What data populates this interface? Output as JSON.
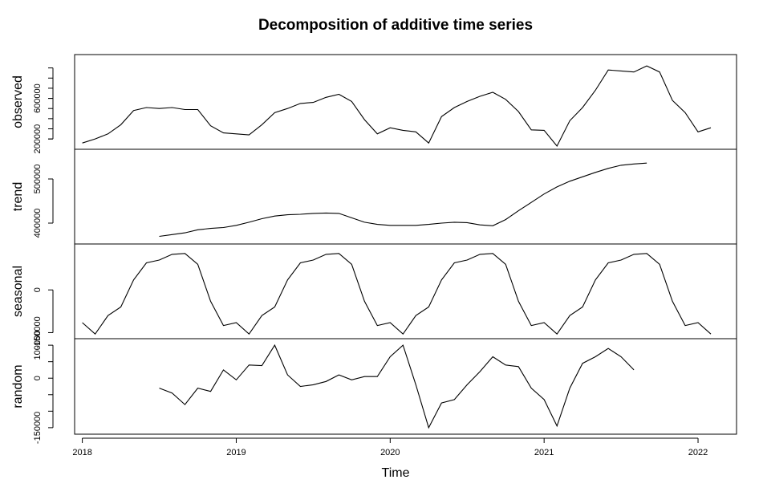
{
  "chart_data": {
    "type": "line",
    "title": "Decomposition of additive time series",
    "xlabel": "Time",
    "xlim": [
      2017.95,
      2022.25
    ],
    "x_ticks": [
      2018,
      2019,
      2020,
      2021,
      2022
    ],
    "x_tick_labels": [
      "2018",
      "2019",
      "2020",
      "2021",
      "2022"
    ],
    "start": 2018.0,
    "frequency": 12,
    "panels": [
      {
        "name": "observed",
        "ylabel": "observed",
        "ylim": [
          130000,
          1000000
        ],
        "y_ticks": [
          200000,
          600000
        ],
        "y_tick_labels": [
          "200000",
          "600000"
        ],
        "minor_ticks": [
          200000,
          300000,
          400000,
          500000,
          600000,
          700000,
          800000,
          900000
        ],
        "values": [
          160000,
          200000,
          250000,
          340000,
          480000,
          510000,
          500000,
          510000,
          490000,
          490000,
          330000,
          260000,
          250000,
          240000,
          340000,
          460000,
          500000,
          550000,
          560000,
          610000,
          640000,
          570000,
          390000,
          250000,
          310000,
          285000,
          270000,
          160000,
          420000,
          510000,
          570000,
          620000,
          660000,
          590000,
          470000,
          290000,
          285000,
          130000,
          380000,
          510000,
          680000,
          880000,
          870000,
          860000,
          920000,
          860000,
          580000,
          460000,
          270000,
          310000
        ]
      },
      {
        "name": "trend",
        "ylabel": "trend",
        "ylim": [
          360000,
          560000
        ],
        "y_ticks": [
          400000,
          500000
        ],
        "y_tick_labels": [
          "400000",
          "500000"
        ],
        "values": [
          null,
          null,
          null,
          null,
          null,
          null,
          370000,
          374000,
          378000,
          385000,
          388000,
          390000,
          395000,
          402000,
          410000,
          416000,
          419000,
          420000,
          422000,
          423000,
          422000,
          412000,
          402000,
          397000,
          395000,
          395000,
          395000,
          397000,
          400000,
          402000,
          401000,
          396000,
          394000,
          408000,
          428000,
          447000,
          466000,
          482000,
          495000,
          505000,
          515000,
          524000,
          531000,
          534000,
          536000,
          null,
          null,
          null,
          null,
          null
        ]
      },
      {
        "name": "seasonal",
        "ylabel": "seasonal",
        "ylim": [
          -160000,
          150000
        ],
        "y_ticks": [
          -150000,
          0
        ],
        "y_tick_labels": [
          "-150000",
          "0"
        ],
        "values": [
          -115000,
          -155000,
          -90000,
          -60000,
          35000,
          95000,
          105000,
          125000,
          128000,
          90000,
          -40000,
          -125000,
          -115000,
          -155000,
          -90000,
          -60000,
          35000,
          95000,
          105000,
          125000,
          128000,
          90000,
          -40000,
          -125000,
          -115000,
          -155000,
          -90000,
          -60000,
          35000,
          95000,
          105000,
          125000,
          128000,
          90000,
          -40000,
          -125000,
          -115000,
          -155000,
          -90000,
          -60000,
          35000,
          95000,
          105000,
          125000,
          128000,
          90000,
          -40000,
          -125000,
          -115000,
          -155000
        ]
      },
      {
        "name": "random",
        "ylabel": "random",
        "ylim": [
          -160000,
          110000
        ],
        "y_ticks": [
          -150000,
          0,
          100000
        ],
        "y_tick_labels": [
          "-150000",
          "0",
          "100000"
        ],
        "minor_ticks": [
          -100000,
          -50000,
          50000
        ],
        "values": [
          null,
          null,
          null,
          null,
          null,
          null,
          -30000,
          -45000,
          -80000,
          -30000,
          -40000,
          25000,
          -5000,
          40000,
          38000,
          100000,
          10000,
          -25000,
          -20000,
          -10000,
          10000,
          -5000,
          5000,
          5000,
          65000,
          100000,
          -20000,
          -150000,
          -75000,
          -65000,
          -20000,
          20000,
          65000,
          40000,
          35000,
          -30000,
          -65000,
          -145000,
          -30000,
          45000,
          65000,
          90000,
          65000,
          25000,
          null,
          null,
          null,
          null,
          null,
          null
        ]
      }
    ]
  }
}
